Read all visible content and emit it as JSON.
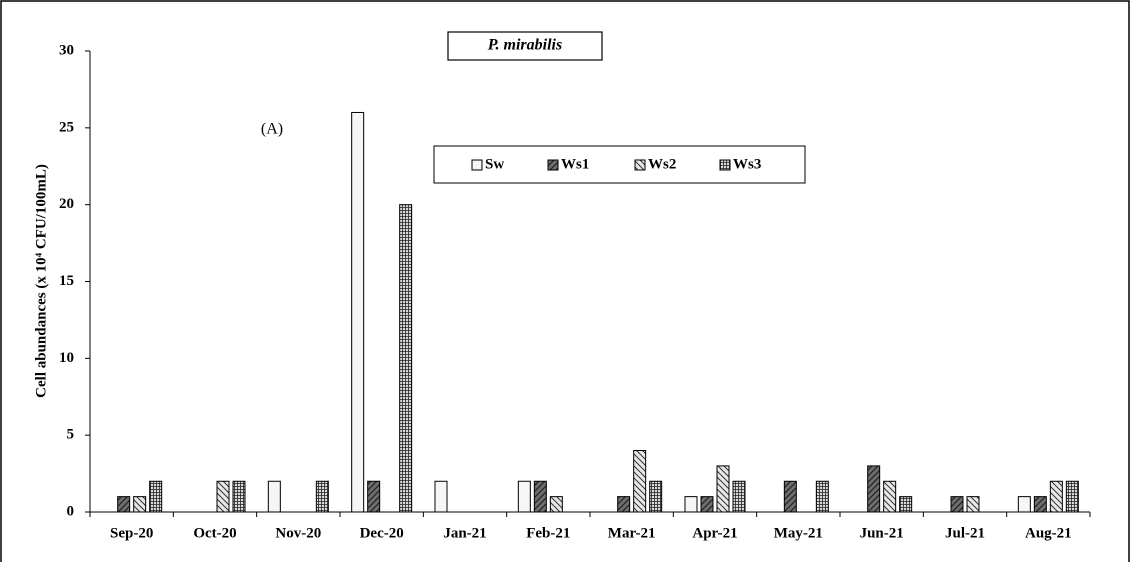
{
  "chart_data": {
    "type": "bar",
    "title": "P. mirabilis",
    "annotation": "(A)",
    "y_label": "Cell abundances (x 10⁴ CFU/100mL)",
    "categories": [
      "Sep-20",
      "Oct-20",
      "Nov-20",
      "Dec-20",
      "Jan-21",
      "Feb-21",
      "Mar-21",
      "Apr-21",
      "May-21",
      "Jun-21",
      "Jul-21",
      "Aug-21"
    ],
    "series": [
      {
        "name": "Sw",
        "color": "#ffffff",
        "values": [
          0,
          0,
          2,
          26,
          2,
          2,
          0,
          1,
          0,
          0,
          0,
          1
        ]
      },
      {
        "name": "Ws1",
        "color": "#6e6e6e",
        "values": [
          1,
          0,
          0,
          2,
          0,
          2,
          1,
          1,
          2,
          3,
          1,
          1
        ]
      },
      {
        "name": "Ws2",
        "color": "#e8e8e8",
        "values": [
          1,
          2,
          0,
          0,
          0,
          1,
          4,
          3,
          0,
          2,
          1,
          2
        ]
      },
      {
        "name": "Ws3",
        "color": "#d8d8d8",
        "values": [
          2,
          2,
          2,
          20,
          0,
          0,
          2,
          2,
          2,
          1,
          0,
          2
        ]
      }
    ],
    "ylim": [
      0,
      30
    ],
    "yticks": [
      0,
      5,
      10,
      15,
      20,
      25,
      30
    ],
    "grid": false
  }
}
